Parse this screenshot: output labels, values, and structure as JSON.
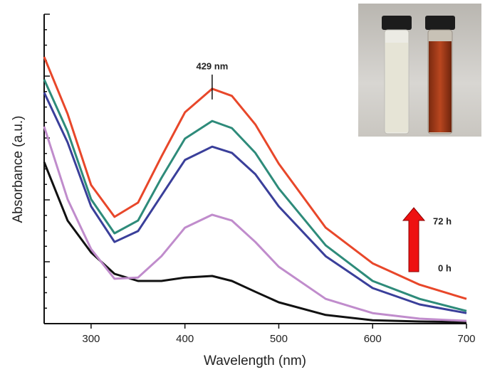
{
  "chart_data": {
    "type": "line",
    "x_label": "Wavelength (nm)",
    "y_label": "Absorbance (a.u.)",
    "x": [
      250,
      275,
      300,
      325,
      350,
      375,
      400,
      429,
      450,
      475,
      500,
      550,
      600,
      650,
      700
    ],
    "xlim": [
      250,
      700
    ],
    "xticks": [
      300,
      400,
      500,
      600,
      700
    ],
    "ylim": [
      0,
      1
    ],
    "series": [
      {
        "color": "#111111",
        "values": [
          0.522,
          0.333,
          0.23,
          0.161,
          0.138,
          0.138,
          0.149,
          0.154,
          0.138,
          0.103,
          0.069,
          0.028,
          0.011,
          0.007,
          0.005
        ]
      },
      {
        "color": "#c08ccc",
        "values": [
          0.637,
          0.402,
          0.241,
          0.145,
          0.149,
          0.218,
          0.31,
          0.352,
          0.333,
          0.264,
          0.184,
          0.08,
          0.034,
          0.016,
          0.009
        ]
      },
      {
        "color": "#3a3f9a",
        "values": [
          0.747,
          0.586,
          0.379,
          0.264,
          0.299,
          0.414,
          0.529,
          0.572,
          0.552,
          0.483,
          0.379,
          0.218,
          0.115,
          0.062,
          0.034
        ]
      },
      {
        "color": "#2e8b7a",
        "values": [
          0.789,
          0.621,
          0.402,
          0.292,
          0.333,
          0.471,
          0.598,
          0.655,
          0.632,
          0.552,
          0.437,
          0.253,
          0.138,
          0.08,
          0.041
        ]
      },
      {
        "color": "#e8472a",
        "values": [
          0.862,
          0.678,
          0.448,
          0.345,
          0.391,
          0.54,
          0.683,
          0.759,
          0.736,
          0.644,
          0.517,
          0.31,
          0.195,
          0.126,
          0.08
        ]
      }
    ],
    "annotations": [
      {
        "text": "429 nm",
        "x": 429
      },
      {
        "text": "72 h"
      },
      {
        "text": "0 h"
      }
    ]
  }
}
